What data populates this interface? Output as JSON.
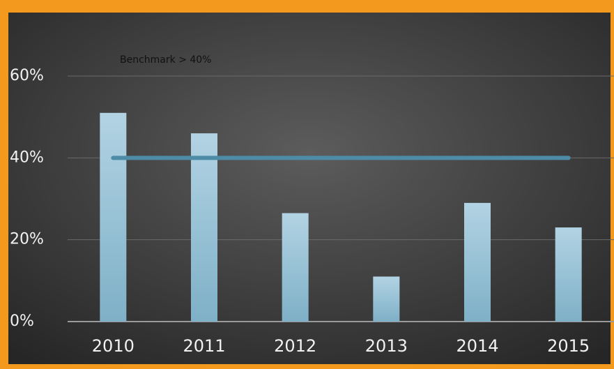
{
  "chart_data": {
    "type": "bar",
    "annotation": "Benchmark > 40%",
    "categories": [
      "2010",
      "2011",
      "2012",
      "2013",
      "2014",
      "2015"
    ],
    "series": [
      {
        "type": "bar",
        "color": "#a6cbdd",
        "values": [
          51,
          46,
          26.5,
          11,
          29,
          23
        ]
      },
      {
        "type": "line",
        "color": "#4d8ba6",
        "values": [
          40,
          40,
          40,
          40,
          40,
          40
        ]
      }
    ],
    "ylim": [
      0,
      60
    ],
    "yticks": [
      {
        "value": 0,
        "label": "0%"
      },
      {
        "value": 20,
        "label": "20%"
      },
      {
        "value": 40,
        "label": "40%"
      },
      {
        "value": 60,
        "label": "60%"
      }
    ],
    "grid": true
  }
}
